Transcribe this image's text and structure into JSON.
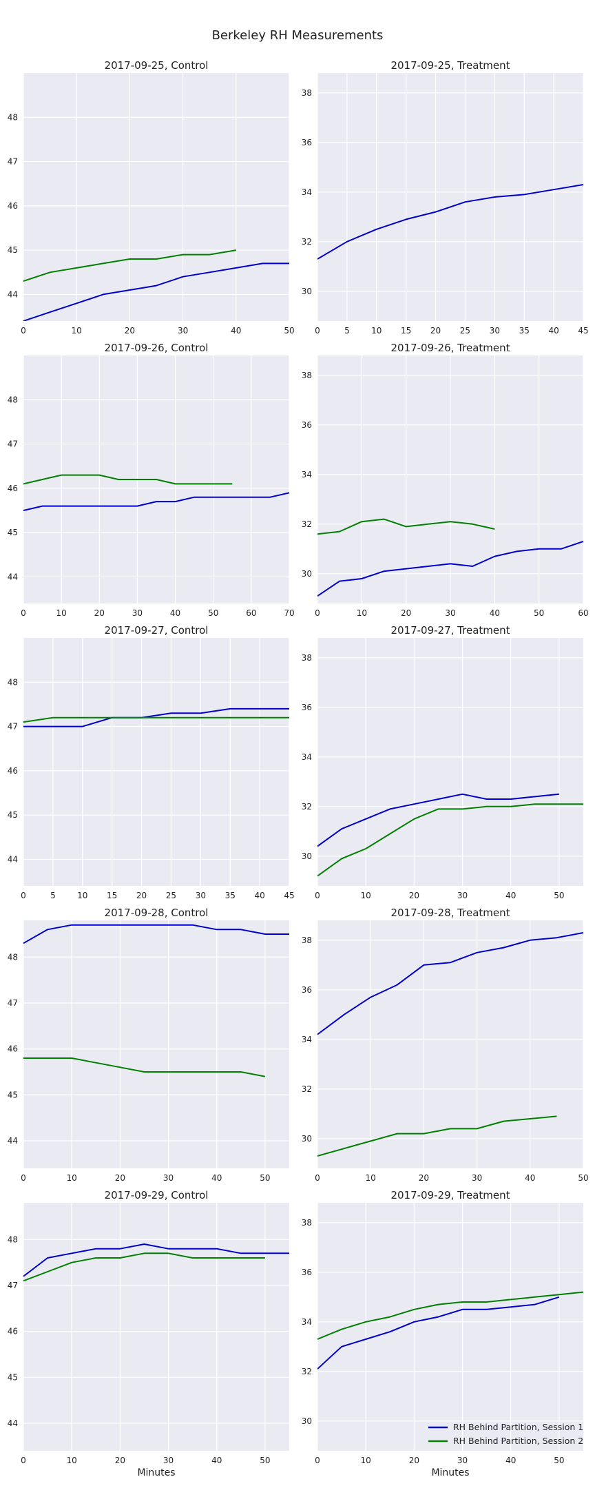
{
  "figure": {
    "title": "Berkeley RH Measurements"
  },
  "legend": {
    "location": "lower-right of last panel",
    "entries": [
      {
        "label": "RH Behind Partition, Session 1",
        "color": "#0000cc"
      },
      {
        "label": "RH Behind Partition, Session 2",
        "color": "#008000"
      }
    ]
  },
  "colors": {
    "session1": "#0000cc",
    "session2": "#008000",
    "panel_bg": "#eaeaf2",
    "grid": "#ffffff"
  },
  "chart_data": [
    {
      "type": "line",
      "title": "2017-09-25, Control",
      "xlabel": "",
      "ylabel": "",
      "xlim": [
        0,
        50
      ],
      "ylim": [
        43.4,
        49.0
      ],
      "xticks": [
        0,
        10,
        20,
        30,
        40,
        50
      ],
      "yticks": [
        44,
        45,
        46,
        47,
        48
      ],
      "series": [
        {
          "name": "RH Behind Partition, Session 1",
          "x": [
            0,
            5,
            10,
            15,
            20,
            25,
            30,
            35,
            40,
            45,
            50
          ],
          "y": [
            43.4,
            43.6,
            43.8,
            44.0,
            44.1,
            44.2,
            44.4,
            44.5,
            44.6,
            44.7,
            44.7
          ]
        },
        {
          "name": "RH Behind Partition, Session 2",
          "x": [
            0,
            5,
            10,
            15,
            20,
            25,
            30,
            35,
            40
          ],
          "y": [
            44.3,
            44.5,
            44.6,
            44.7,
            44.8,
            44.8,
            44.9,
            44.9,
            45.0
          ]
        }
      ]
    },
    {
      "type": "line",
      "title": "2017-09-25, Treatment",
      "xlabel": "",
      "ylabel": "",
      "xlim": [
        0,
        45
      ],
      "ylim": [
        28.8,
        38.8
      ],
      "xticks": [
        0,
        5,
        10,
        15,
        20,
        25,
        30,
        35,
        40,
        45
      ],
      "yticks": [
        30,
        32,
        34,
        36,
        38
      ],
      "series": [
        {
          "name": "RH Behind Partition, Session 1",
          "x": [
            0,
            5,
            10,
            15,
            20,
            25,
            30,
            35,
            40,
            45
          ],
          "y": [
            31.3,
            32.0,
            32.5,
            32.9,
            33.2,
            33.6,
            33.8,
            33.9,
            34.1,
            34.3
          ]
        }
      ]
    },
    {
      "type": "line",
      "title": "2017-09-26, Control",
      "xlabel": "",
      "ylabel": "",
      "xlim": [
        0,
        70
      ],
      "ylim": [
        43.4,
        49.0
      ],
      "xticks": [
        0,
        10,
        20,
        30,
        40,
        50,
        60,
        70
      ],
      "yticks": [
        44,
        45,
        46,
        47,
        48
      ],
      "series": [
        {
          "name": "RH Behind Partition, Session 1",
          "x": [
            0,
            5,
            10,
            15,
            20,
            25,
            30,
            35,
            40,
            45,
            50,
            55,
            60,
            65,
            70
          ],
          "y": [
            45.5,
            45.6,
            45.6,
            45.6,
            45.6,
            45.6,
            45.6,
            45.7,
            45.7,
            45.8,
            45.8,
            45.8,
            45.8,
            45.8,
            45.9
          ]
        },
        {
          "name": "RH Behind Partition, Session 2",
          "x": [
            0,
            5,
            10,
            15,
            20,
            25,
            30,
            35,
            40,
            45,
            50,
            55
          ],
          "y": [
            46.1,
            46.2,
            46.3,
            46.3,
            46.3,
            46.2,
            46.2,
            46.2,
            46.1,
            46.1,
            46.1,
            46.1
          ]
        }
      ]
    },
    {
      "type": "line",
      "title": "2017-09-26, Treatment",
      "xlabel": "",
      "ylabel": "",
      "xlim": [
        0,
        60
      ],
      "ylim": [
        28.8,
        38.8
      ],
      "xticks": [
        0,
        10,
        20,
        30,
        40,
        50,
        60
      ],
      "yticks": [
        30,
        32,
        34,
        36,
        38
      ],
      "series": [
        {
          "name": "RH Behind Partition, Session 1",
          "x": [
            0,
            5,
            10,
            15,
            20,
            25,
            30,
            35,
            40,
            45,
            50,
            55,
            60
          ],
          "y": [
            29.1,
            29.7,
            29.8,
            30.1,
            30.2,
            30.3,
            30.4,
            30.3,
            30.7,
            30.9,
            31.0,
            31.0,
            31.3
          ]
        },
        {
          "name": "RH Behind Partition, Session 2",
          "x": [
            0,
            5,
            10,
            15,
            20,
            25,
            30,
            35,
            40
          ],
          "y": [
            31.6,
            31.7,
            32.1,
            32.2,
            31.9,
            32.0,
            32.1,
            32.0,
            31.8
          ]
        }
      ]
    },
    {
      "type": "line",
      "title": "2017-09-27, Control",
      "xlabel": "",
      "ylabel": "",
      "xlim": [
        0,
        45
      ],
      "ylim": [
        43.4,
        49.0
      ],
      "xticks": [
        0,
        5,
        10,
        15,
        20,
        25,
        30,
        35,
        40,
        45
      ],
      "yticks": [
        44,
        45,
        46,
        47,
        48
      ],
      "series": [
        {
          "name": "RH Behind Partition, Session 1",
          "x": [
            0,
            5,
            10,
            15,
            20,
            25,
            30,
            35,
            40,
            45
          ],
          "y": [
            47.0,
            47.0,
            47.0,
            47.2,
            47.2,
            47.3,
            47.3,
            47.4,
            47.4,
            47.4
          ]
        },
        {
          "name": "RH Behind Partition, Session 2",
          "x": [
            0,
            5,
            10,
            15,
            20,
            25,
            30,
            35,
            40,
            45
          ],
          "y": [
            47.1,
            47.2,
            47.2,
            47.2,
            47.2,
            47.2,
            47.2,
            47.2,
            47.2,
            47.2
          ]
        }
      ]
    },
    {
      "type": "line",
      "title": "2017-09-27, Treatment",
      "xlabel": "",
      "ylabel": "",
      "xlim": [
        0,
        55
      ],
      "ylim": [
        28.8,
        38.8
      ],
      "xticks": [
        0,
        10,
        20,
        30,
        40,
        50
      ],
      "yticks": [
        30,
        32,
        34,
        36,
        38
      ],
      "series": [
        {
          "name": "RH Behind Partition, Session 1",
          "x": [
            0,
            5,
            10,
            15,
            20,
            25,
            30,
            35,
            40,
            45,
            50
          ],
          "y": [
            30.4,
            31.1,
            31.5,
            31.9,
            32.1,
            32.3,
            32.5,
            32.3,
            32.3,
            32.4,
            32.5
          ]
        },
        {
          "name": "RH Behind Partition, Session 2",
          "x": [
            0,
            5,
            10,
            15,
            20,
            25,
            30,
            35,
            40,
            45,
            50,
            55
          ],
          "y": [
            29.2,
            29.9,
            30.3,
            30.9,
            31.5,
            31.9,
            31.9,
            32.0,
            32.0,
            32.1,
            32.1,
            32.1
          ]
        }
      ]
    },
    {
      "type": "line",
      "title": "2017-09-28, Control",
      "xlabel": "",
      "ylabel": "",
      "xlim": [
        0,
        55
      ],
      "ylim": [
        43.4,
        48.8
      ],
      "xticks": [
        0,
        10,
        20,
        30,
        40,
        50
      ],
      "yticks": [
        44,
        45,
        46,
        47,
        48
      ],
      "series": [
        {
          "name": "RH Behind Partition, Session 1",
          "x": [
            0,
            5,
            10,
            15,
            20,
            25,
            30,
            35,
            40,
            45,
            50,
            55
          ],
          "y": [
            48.3,
            48.6,
            48.7,
            48.7,
            48.7,
            48.7,
            48.7,
            48.7,
            48.6,
            48.6,
            48.5,
            48.5
          ]
        },
        {
          "name": "RH Behind Partition, Session 2",
          "x": [
            0,
            5,
            10,
            15,
            20,
            25,
            30,
            35,
            40,
            45,
            50
          ],
          "y": [
            45.8,
            45.8,
            45.8,
            45.7,
            45.6,
            45.5,
            45.5,
            45.5,
            45.5,
            45.5,
            45.4
          ]
        }
      ]
    },
    {
      "type": "line",
      "title": "2017-09-28, Treatment",
      "xlabel": "",
      "ylabel": "",
      "xlim": [
        0,
        50
      ],
      "ylim": [
        28.8,
        38.8
      ],
      "xticks": [
        0,
        10,
        20,
        30,
        40,
        50
      ],
      "yticks": [
        30,
        32,
        34,
        36,
        38
      ],
      "series": [
        {
          "name": "RH Behind Partition, Session 1",
          "x": [
            0,
            5,
            10,
            15,
            20,
            25,
            30,
            35,
            40,
            45,
            50
          ],
          "y": [
            34.2,
            35.0,
            35.7,
            36.2,
            37.0,
            37.1,
            37.5,
            37.7,
            38.0,
            38.1,
            38.3
          ]
        },
        {
          "name": "RH Behind Partition, Session 2",
          "x": [
            0,
            5,
            10,
            15,
            20,
            25,
            30,
            35,
            40,
            45
          ],
          "y": [
            29.3,
            29.6,
            29.9,
            30.2,
            30.2,
            30.4,
            30.4,
            30.7,
            30.8,
            30.9
          ]
        }
      ]
    },
    {
      "type": "line",
      "title": "2017-09-29, Control",
      "xlabel": "Minutes",
      "ylabel": "",
      "xlim": [
        0,
        55
      ],
      "ylim": [
        43.4,
        48.8
      ],
      "xticks": [
        0,
        10,
        20,
        30,
        40,
        50
      ],
      "yticks": [
        44,
        45,
        46,
        47,
        48
      ],
      "series": [
        {
          "name": "RH Behind Partition, Session 1",
          "x": [
            0,
            5,
            10,
            15,
            20,
            25,
            30,
            35,
            40,
            45,
            50,
            55
          ],
          "y": [
            47.2,
            47.6,
            47.7,
            47.8,
            47.8,
            47.9,
            47.8,
            47.8,
            47.8,
            47.7,
            47.7,
            47.7
          ]
        },
        {
          "name": "RH Behind Partition, Session 2",
          "x": [
            0,
            5,
            10,
            15,
            20,
            25,
            30,
            35,
            40,
            45,
            50
          ],
          "y": [
            47.1,
            47.3,
            47.5,
            47.6,
            47.6,
            47.7,
            47.7,
            47.6,
            47.6,
            47.6,
            47.6
          ]
        }
      ]
    },
    {
      "type": "line",
      "title": "2017-09-29, Treatment",
      "xlabel": "Minutes",
      "ylabel": "",
      "xlim": [
        0,
        55
      ],
      "ylim": [
        28.8,
        38.8
      ],
      "xticks": [
        0,
        10,
        20,
        30,
        40,
        50
      ],
      "yticks": [
        30,
        32,
        34,
        36,
        38
      ],
      "series": [
        {
          "name": "RH Behind Partition, Session 1",
          "x": [
            0,
            5,
            10,
            15,
            20,
            25,
            30,
            35,
            40,
            45,
            50
          ],
          "y": [
            32.1,
            33.0,
            33.3,
            33.6,
            34.0,
            34.2,
            34.5,
            34.5,
            34.6,
            34.7,
            35.0
          ]
        },
        {
          "name": "RH Behind Partition, Session 2",
          "x": [
            0,
            5,
            10,
            15,
            20,
            25,
            30,
            35,
            40,
            45,
            50,
            55
          ],
          "y": [
            33.3,
            33.7,
            34.0,
            34.2,
            34.5,
            34.7,
            34.8,
            34.8,
            34.9,
            35.0,
            35.1,
            35.2
          ]
        }
      ]
    }
  ]
}
